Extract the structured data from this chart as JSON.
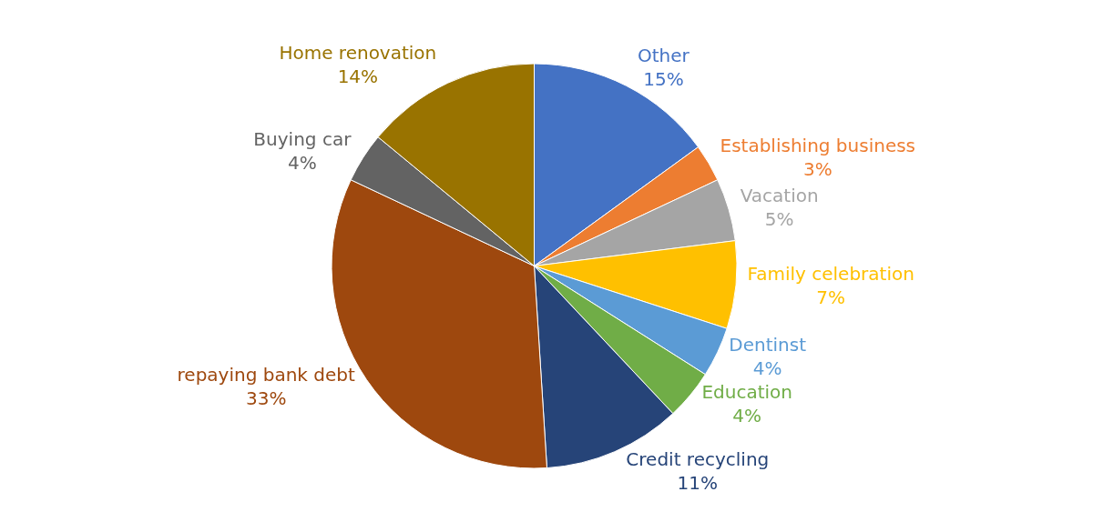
{
  "chart_data": {
    "type": "pie",
    "categories": [
      "Other",
      "Establishing business",
      "Vacation",
      "Family celebration",
      "Dentinst",
      "Education",
      "Credit recycling",
      "repaying bank debt",
      "Buying car",
      "Home renovation"
    ],
    "values": [
      15,
      3,
      5,
      7,
      4,
      4,
      11,
      33,
      4,
      14
    ],
    "value_labels": [
      "15%",
      "3%",
      "5%",
      "7%",
      "4%",
      "4%",
      "11%",
      "33%",
      "4%",
      "14%"
    ],
    "colors": [
      "#4472c4",
      "#ed7d31",
      "#a5a5a5",
      "#ffc000",
      "#5b9bd5",
      "#70ad47",
      "#264478",
      "#9e480e",
      "#636363",
      "#997300"
    ],
    "legend": false
  }
}
